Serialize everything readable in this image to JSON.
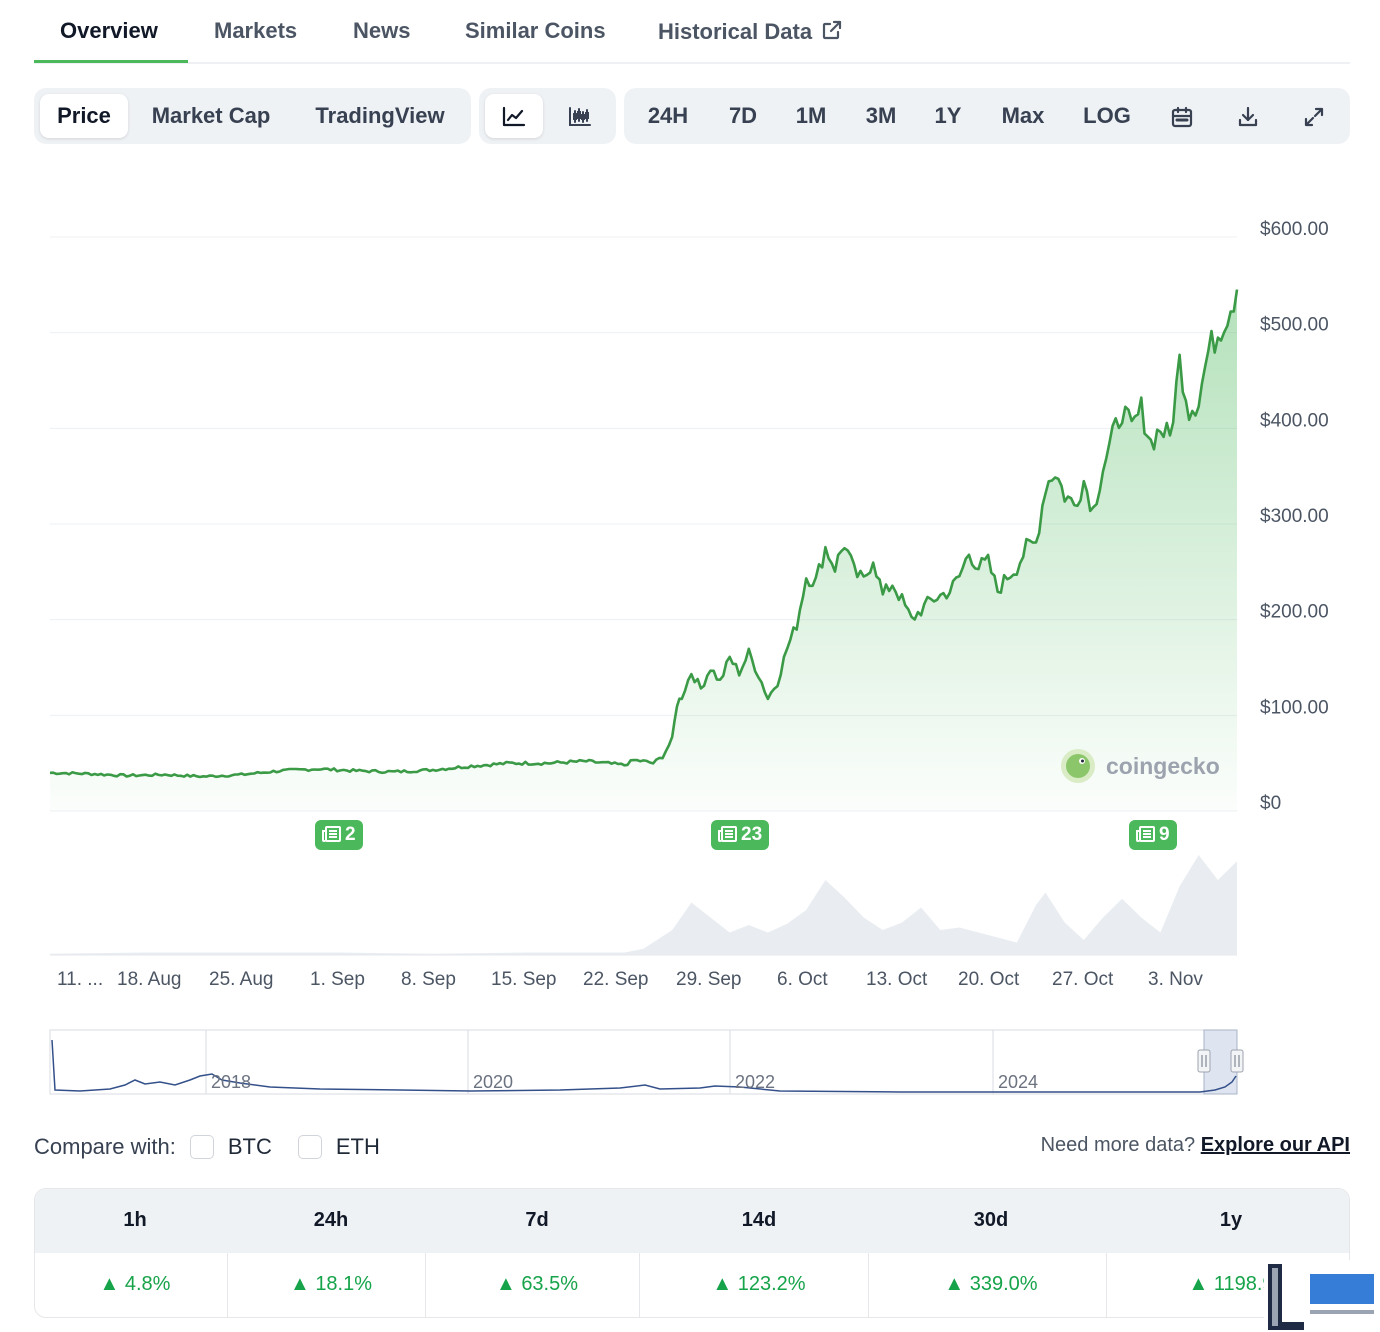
{
  "tabs": [
    {
      "label": "Overview",
      "active": true
    },
    {
      "label": "Markets"
    },
    {
      "label": "News"
    },
    {
      "label": "Similar Coins"
    },
    {
      "label": "Historical Data"
    }
  ],
  "toolbar": {
    "chart_types": [
      "Price",
      "Market Cap",
      "TradingView"
    ],
    "view_icons": [
      "line-chart-icon",
      "candlestick-icon"
    ],
    "ranges": [
      "24H",
      "7D",
      "1M",
      "3M",
      "1Y",
      "Max",
      "LOG"
    ],
    "tools": [
      "calendar-icon",
      "download-icon",
      "fullscreen-icon"
    ]
  },
  "chart_data": {
    "type": "area",
    "y_ticks": [
      "$600.00",
      "$500.00",
      "$400.00",
      "$300.00",
      "$200.00",
      "$100.00",
      "$0"
    ],
    "ylim": [
      0,
      600
    ],
    "x_ticks": [
      "11. ...",
      "18. Aug",
      "25. Aug",
      "1. Sep",
      "8. Sep",
      "15. Sep",
      "22. Sep",
      "29. Sep",
      "6. Oct",
      "13. Oct",
      "20. Oct",
      "27. Oct",
      "3. Nov"
    ],
    "price_series": [
      [
        0,
        40
      ],
      [
        4,
        39
      ],
      [
        8,
        37
      ],
      [
        12,
        38
      ],
      [
        16,
        36
      ],
      [
        20,
        38
      ],
      [
        24,
        42
      ],
      [
        28,
        44
      ],
      [
        32,
        42
      ],
      [
        36,
        41
      ],
      [
        40,
        43
      ],
      [
        44,
        47
      ],
      [
        48,
        50
      ],
      [
        52,
        50
      ],
      [
        56,
        52
      ],
      [
        60,
        48
      ],
      [
        61,
        53
      ],
      [
        62,
        52
      ],
      [
        63,
        50
      ],
      [
        64,
        57
      ],
      [
        65,
        75
      ],
      [
        65.5,
        112
      ],
      [
        66,
        120
      ],
      [
        67,
        145
      ],
      [
        68,
        128
      ],
      [
        69,
        150
      ],
      [
        70,
        135
      ],
      [
        71,
        160
      ],
      [
        72,
        145
      ],
      [
        73,
        165
      ],
      [
        74,
        143
      ],
      [
        75,
        118
      ],
      [
        76,
        135
      ],
      [
        77,
        170
      ],
      [
        78,
        195
      ],
      [
        79,
        245
      ],
      [
        80,
        240
      ],
      [
        81,
        275
      ],
      [
        82,
        255
      ],
      [
        83,
        280
      ],
      [
        84,
        250
      ],
      [
        85,
        240
      ],
      [
        86,
        265
      ],
      [
        87,
        225
      ],
      [
        88,
        238
      ],
      [
        89,
        220
      ],
      [
        90,
        200
      ],
      [
        91,
        210
      ],
      [
        92,
        220
      ],
      [
        93,
        225
      ],
      [
        94,
        230
      ],
      [
        95,
        245
      ],
      [
        96,
        270
      ],
      [
        97,
        255
      ],
      [
        98,
        260
      ],
      [
        99,
        230
      ],
      [
        100,
        245
      ],
      [
        101,
        255
      ],
      [
        102,
        275
      ],
      [
        103,
        280
      ],
      [
        104,
        340
      ],
      [
        105,
        355
      ],
      [
        106,
        330
      ],
      [
        107,
        320
      ],
      [
        108,
        345
      ],
      [
        109,
        315
      ],
      [
        110,
        360
      ],
      [
        111,
        390
      ],
      [
        112,
        420
      ],
      [
        113,
        398
      ],
      [
        114,
        420
      ],
      [
        115,
        385
      ],
      [
        116,
        400
      ],
      [
        117,
        390
      ],
      [
        118,
        470
      ],
      [
        119,
        420
      ],
      [
        120,
        430
      ],
      [
        121,
        480
      ],
      [
        122,
        500
      ],
      [
        123,
        520
      ],
      [
        124,
        545
      ]
    ],
    "volume_series": [
      [
        0,
        1
      ],
      [
        10,
        2
      ],
      [
        20,
        2
      ],
      [
        30,
        2
      ],
      [
        40,
        1
      ],
      [
        50,
        2
      ],
      [
        60,
        2
      ],
      [
        62,
        5
      ],
      [
        65,
        20
      ],
      [
        67,
        42
      ],
      [
        69,
        30
      ],
      [
        71,
        18
      ],
      [
        73,
        24
      ],
      [
        75,
        18
      ],
      [
        77,
        25
      ],
      [
        79,
        36
      ],
      [
        81,
        60
      ],
      [
        83,
        46
      ],
      [
        85,
        30
      ],
      [
        87,
        20
      ],
      [
        89,
        26
      ],
      [
        91,
        38
      ],
      [
        93,
        20
      ],
      [
        95,
        22
      ],
      [
        97,
        18
      ],
      [
        99,
        14
      ],
      [
        101,
        10
      ],
      [
        103,
        40
      ],
      [
        104,
        50
      ],
      [
        106,
        26
      ],
      [
        108,
        12
      ],
      [
        110,
        30
      ],
      [
        112,
        45
      ],
      [
        114,
        30
      ],
      [
        116,
        18
      ],
      [
        118,
        55
      ],
      [
        120,
        80
      ],
      [
        122,
        60
      ],
      [
        124,
        75
      ]
    ],
    "news_counts": [
      "2",
      "23",
      "9"
    ],
    "navigator_labels": [
      "2018",
      "2020",
      "2022",
      "2024"
    ],
    "watermark": "coingecko"
  },
  "compare": {
    "label": "Compare with:",
    "options": [
      "BTC",
      "ETH"
    ]
  },
  "api": {
    "prompt": "Need more data?",
    "link": "Explore our API"
  },
  "performance": {
    "headers": [
      "1h",
      "24h",
      "7d",
      "14d",
      "30d",
      "1y"
    ],
    "values": [
      "4.8%",
      "18.1%",
      "63.5%",
      "123.2%",
      "339.0%",
      "1198.9"
    ]
  },
  "brand_colors": {
    "up": "#16a34a",
    "line": "#3b9a46",
    "accent": "#4cb85c"
  }
}
